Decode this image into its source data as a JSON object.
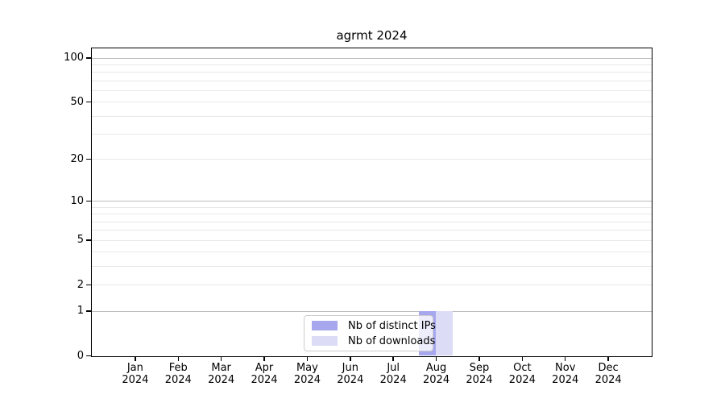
{
  "title": "agrmt 2024",
  "chart_data": {
    "type": "bar",
    "title": "agrmt 2024",
    "x": [
      "Jan 2024",
      "Feb 2024",
      "Mar 2024",
      "Apr 2024",
      "May 2024",
      "Jun 2024",
      "Jul 2024",
      "Aug 2024",
      "Sep 2024",
      "Oct 2024",
      "Nov 2024",
      "Dec 2024"
    ],
    "x_ticklabels": [
      {
        "month": "Jan",
        "year": "2024"
      },
      {
        "month": "Feb",
        "year": "2024"
      },
      {
        "month": "Mar",
        "year": "2024"
      },
      {
        "month": "Apr",
        "year": "2024"
      },
      {
        "month": "May",
        "year": "2024"
      },
      {
        "month": "Jun",
        "year": "2024"
      },
      {
        "month": "Jul",
        "year": "2024"
      },
      {
        "month": "Aug",
        "year": "2024"
      },
      {
        "month": "Sep",
        "year": "2024"
      },
      {
        "month": "Oct",
        "year": "2024"
      },
      {
        "month": "Nov",
        "year": "2024"
      },
      {
        "month": "Dec",
        "year": "2024"
      }
    ],
    "series": [
      {
        "name": "Nb of distinct IPs",
        "color": "#a7a7ee",
        "values": [
          0,
          0,
          0,
          0,
          0,
          0,
          0,
          1,
          0,
          0,
          0,
          0
        ]
      },
      {
        "name": "Nb of downloads",
        "color": "#dcdcf6",
        "values": [
          0,
          0,
          0,
          0,
          0,
          0,
          0,
          1,
          0,
          0,
          0,
          0
        ]
      }
    ],
    "yscale": "log1p",
    "ylim": [
      0,
      115
    ],
    "yticks": [
      {
        "value": 0,
        "label": "0"
      },
      {
        "value": 1,
        "label": "1"
      },
      {
        "value": 2,
        "label": "2"
      },
      {
        "value": 5,
        "label": "5"
      },
      {
        "value": 10,
        "label": "10"
      },
      {
        "value": 20,
        "label": "20"
      },
      {
        "value": 50,
        "label": "50"
      },
      {
        "value": 100,
        "label": "100"
      }
    ],
    "grid": true,
    "grid_major_values": [
      1,
      10,
      100
    ],
    "grid_minor_values": [
      2,
      3,
      4,
      5,
      6,
      7,
      8,
      9,
      20,
      30,
      40,
      50,
      60,
      70,
      80,
      90
    ],
    "legend_position": "lower center",
    "colors": {
      "grid_major": "#bcbcbc",
      "grid_minor": "#e8e8e8",
      "spine": "#000000",
      "text": "#000000",
      "legend_border": "#cccccc",
      "background": "#ffffff"
    }
  }
}
